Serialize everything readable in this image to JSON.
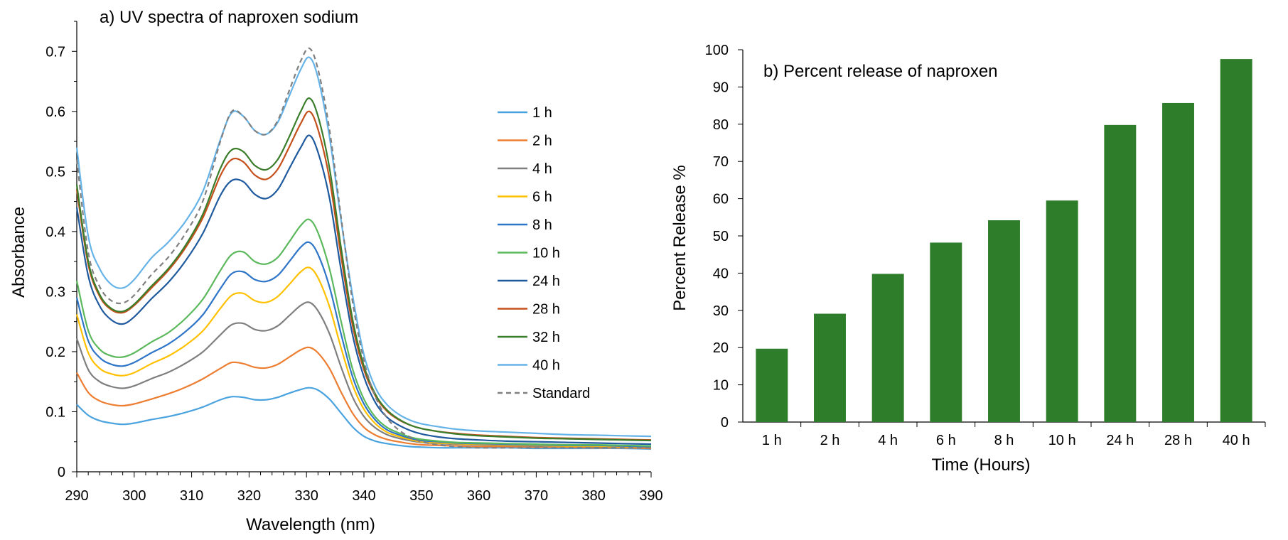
{
  "chart_data": [
    {
      "type": "line",
      "title": "a) UV spectra of naproxen sodium",
      "xlabel": "Wavelength (nm)",
      "ylabel": "Absorbance",
      "xlim": [
        290,
        390
      ],
      "ylim": [
        0,
        0.75
      ],
      "xticks": [
        "290",
        "300",
        "310",
        "320",
        "330",
        "340",
        "350",
        "360",
        "370",
        "380",
        "390"
      ],
      "yticks": [
        "0",
        "0.1",
        "0.2",
        "0.3",
        "0.4",
        "0.5",
        "0.6",
        "0.7"
      ],
      "x": [
        290,
        292,
        294,
        296,
        298,
        300,
        303,
        306,
        309,
        312,
        315,
        317,
        319,
        321,
        323,
        325,
        327,
        329,
        330.5,
        332,
        334,
        336,
        338,
        340,
        342,
        344,
        346,
        348,
        350,
        353,
        356,
        360,
        365,
        370,
        375,
        380,
        385,
        390
      ],
      "series": [
        {
          "name": "1 h",
          "color": "#4aa3df",
          "dash": false,
          "values": [
            0.112,
            0.094,
            0.085,
            0.081,
            0.079,
            0.081,
            0.087,
            0.092,
            0.099,
            0.108,
            0.12,
            0.125,
            0.124,
            0.12,
            0.12,
            0.124,
            0.131,
            0.137,
            0.14,
            0.136,
            0.121,
            0.098,
            0.075,
            0.059,
            0.051,
            0.047,
            0.044,
            0.042,
            0.041,
            0.04,
            0.04,
            0.04,
            0.04,
            0.039,
            0.039,
            0.039,
            0.039,
            0.038
          ]
        },
        {
          "name": "2 h",
          "color": "#ed7d31",
          "dash": false,
          "values": [
            0.165,
            0.132,
            0.118,
            0.112,
            0.11,
            0.113,
            0.121,
            0.13,
            0.141,
            0.155,
            0.172,
            0.182,
            0.18,
            0.174,
            0.173,
            0.179,
            0.191,
            0.203,
            0.207,
            0.198,
            0.172,
            0.133,
            0.098,
            0.074,
            0.061,
            0.054,
            0.05,
            0.047,
            0.045,
            0.044,
            0.043,
            0.042,
            0.042,
            0.041,
            0.041,
            0.04,
            0.04,
            0.039
          ]
        },
        {
          "name": "4 h",
          "color": "#7f7f7f",
          "dash": false,
          "values": [
            0.222,
            0.17,
            0.15,
            0.142,
            0.139,
            0.143,
            0.155,
            0.166,
            0.181,
            0.2,
            0.228,
            0.245,
            0.247,
            0.237,
            0.235,
            0.243,
            0.26,
            0.277,
            0.282,
            0.268,
            0.23,
            0.175,
            0.125,
            0.092,
            0.073,
            0.062,
            0.056,
            0.052,
            0.049,
            0.047,
            0.046,
            0.045,
            0.044,
            0.043,
            0.043,
            0.042,
            0.042,
            0.041
          ]
        },
        {
          "name": "6 h",
          "color": "#ffc000",
          "dash": false,
          "values": [
            0.262,
            0.198,
            0.172,
            0.163,
            0.16,
            0.165,
            0.18,
            0.193,
            0.211,
            0.235,
            0.272,
            0.294,
            0.297,
            0.285,
            0.282,
            0.292,
            0.312,
            0.333,
            0.34,
            0.323,
            0.275,
            0.207,
            0.145,
            0.104,
            0.08,
            0.066,
            0.059,
            0.054,
            0.05,
            0.048,
            0.047,
            0.046,
            0.045,
            0.044,
            0.043,
            0.043,
            0.042,
            0.042
          ]
        },
        {
          "name": "8 h",
          "color": "#2e75c8",
          "dash": false,
          "values": [
            0.29,
            0.218,
            0.19,
            0.179,
            0.176,
            0.182,
            0.198,
            0.213,
            0.234,
            0.262,
            0.305,
            0.33,
            0.333,
            0.32,
            0.317,
            0.327,
            0.35,
            0.374,
            0.382,
            0.362,
            0.308,
            0.23,
            0.159,
            0.113,
            0.086,
            0.07,
            0.062,
            0.056,
            0.052,
            0.05,
            0.048,
            0.047,
            0.046,
            0.045,
            0.044,
            0.044,
            0.043,
            0.042
          ]
        },
        {
          "name": "10 h",
          "color": "#5cb85c",
          "dash": false,
          "values": [
            0.318,
            0.235,
            0.204,
            0.193,
            0.191,
            0.198,
            0.216,
            0.232,
            0.256,
            0.288,
            0.335,
            0.362,
            0.366,
            0.35,
            0.346,
            0.357,
            0.383,
            0.41,
            0.42,
            0.398,
            0.338,
            0.251,
            0.172,
            0.121,
            0.091,
            0.074,
            0.065,
            0.058,
            0.054,
            0.051,
            0.049,
            0.048,
            0.047,
            0.046,
            0.045,
            0.045,
            0.044,
            0.043
          ]
        },
        {
          "name": "24 h",
          "color": "#1f5a9e",
          "dash": false,
          "values": [
            0.44,
            0.326,
            0.276,
            0.253,
            0.246,
            0.258,
            0.288,
            0.316,
            0.352,
            0.398,
            0.46,
            0.485,
            0.483,
            0.462,
            0.455,
            0.47,
            0.505,
            0.54,
            0.56,
            0.532,
            0.456,
            0.337,
            0.229,
            0.158,
            0.115,
            0.091,
            0.078,
            0.069,
            0.063,
            0.058,
            0.055,
            0.053,
            0.051,
            0.05,
            0.049,
            0.048,
            0.047,
            0.046
          ]
        },
        {
          "name": "28 h",
          "color": "#c5501c",
          "dash": false,
          "values": [
            0.47,
            0.345,
            0.292,
            0.27,
            0.265,
            0.277,
            0.306,
            0.336,
            0.374,
            0.424,
            0.493,
            0.52,
            0.516,
            0.494,
            0.487,
            0.504,
            0.541,
            0.58,
            0.6,
            0.57,
            0.488,
            0.36,
            0.245,
            0.17,
            0.126,
            0.101,
            0.087,
            0.078,
            0.072,
            0.067,
            0.064,
            0.061,
            0.059,
            0.057,
            0.056,
            0.055,
            0.054,
            0.053
          ]
        },
        {
          "name": "32 h",
          "color": "#3a7d2a",
          "dash": false,
          "values": [
            0.478,
            0.35,
            0.295,
            0.272,
            0.267,
            0.279,
            0.309,
            0.339,
            0.378,
            0.43,
            0.505,
            0.536,
            0.533,
            0.51,
            0.503,
            0.52,
            0.558,
            0.6,
            0.622,
            0.592,
            0.506,
            0.374,
            0.255,
            0.176,
            0.129,
            0.103,
            0.088,
            0.078,
            0.072,
            0.067,
            0.063,
            0.06,
            0.058,
            0.056,
            0.055,
            0.054,
            0.053,
            0.052
          ]
        },
        {
          "name": "40 h",
          "color": "#66b3e8",
          "dash": false,
          "values": [
            0.54,
            0.392,
            0.338,
            0.312,
            0.306,
            0.32,
            0.356,
            0.383,
            0.418,
            0.468,
            0.553,
            0.598,
            0.592,
            0.568,
            0.562,
            0.582,
            0.626,
            0.67,
            0.69,
            0.656,
            0.558,
            0.42,
            0.295,
            0.195,
            0.14,
            0.112,
            0.096,
            0.086,
            0.08,
            0.075,
            0.071,
            0.068,
            0.066,
            0.064,
            0.062,
            0.061,
            0.06,
            0.059
          ]
        },
        {
          "name": "Standard",
          "color": "#808080",
          "dash": true,
          "values": [
            0.52,
            0.365,
            0.308,
            0.285,
            0.281,
            0.294,
            0.328,
            0.358,
            0.398,
            0.452,
            0.55,
            0.6,
            0.592,
            0.568,
            0.562,
            0.585,
            0.635,
            0.684,
            0.705,
            0.67,
            0.57,
            0.425,
            0.285,
            0.185,
            0.125,
            0.09,
            0.07,
            0.058,
            0.05,
            0.045,
            0.042,
            0.04,
            0.04,
            0.04,
            0.04,
            0.04,
            0.04,
            0.04
          ]
        }
      ],
      "legend": "right"
    },
    {
      "type": "bar",
      "title": "b) Percent release of naproxen",
      "xlabel": "Time (Hours)",
      "ylabel": "Percent Release %",
      "categories": [
        "1 h",
        "2 h",
        "4 h",
        "6 h",
        "8 h",
        "10 h",
        "24 h",
        "28 h",
        "40 h"
      ],
      "values": [
        19.7,
        29.1,
        39.8,
        48.2,
        54.2,
        59.5,
        79.8,
        85.7,
        97.5
      ],
      "ylim": [
        0,
        100
      ],
      "yticks": [
        "0",
        "10",
        "20",
        "30",
        "40",
        "50",
        "60",
        "70",
        "80",
        "90",
        "100"
      ],
      "color": "#2e7d2a"
    }
  ]
}
